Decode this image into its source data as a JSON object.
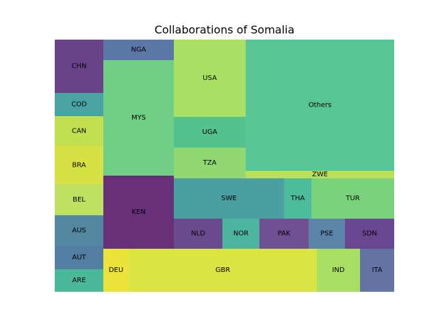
{
  "chart_data": {
    "type": "treemap",
    "title": "Collaborations of Somalia",
    "cells": [
      {
        "label": "CHN",
        "color": "#6a4288"
      },
      {
        "label": "COD",
        "color": "#4aa3a3"
      },
      {
        "label": "CAN",
        "color": "#c2df4e"
      },
      {
        "label": "BRA",
        "color": "#d6e244"
      },
      {
        "label": "BEL",
        "color": "#bde15e"
      },
      {
        "label": "AUS",
        "color": "#52879f"
      },
      {
        "label": "AUT",
        "color": "#527ea3"
      },
      {
        "label": "ARE",
        "color": "#4bb899"
      },
      {
        "label": "NGA",
        "color": "#5b77a6"
      },
      {
        "label": "MYS",
        "color": "#6fd085"
      },
      {
        "label": "KEN",
        "color": "#69307a"
      },
      {
        "label": "USA",
        "color": "#a9df62"
      },
      {
        "label": "UGA",
        "color": "#55c18c"
      },
      {
        "label": "TZA",
        "color": "#92d870"
      },
      {
        "label": "Others",
        "color": "#57c594"
      },
      {
        "label": "ZWE",
        "color": "#b9e057"
      },
      {
        "label": "SWE",
        "color": "#4aa0a0"
      },
      {
        "label": "THA",
        "color": "#4bbd9a"
      },
      {
        "label": "TUR",
        "color": "#79d27c"
      },
      {
        "label": "NLD",
        "color": "#6a4a8c"
      },
      {
        "label": "NOR",
        "color": "#4bb5a0"
      },
      {
        "label": "PAK",
        "color": "#704f93"
      },
      {
        "label": "PSE",
        "color": "#5a84a8"
      },
      {
        "label": "SDN",
        "color": "#6b4690"
      },
      {
        "label": "DEU",
        "color": "#ebe23a"
      },
      {
        "label": "GBR",
        "color": "#dae545"
      },
      {
        "label": "IND",
        "color": "#a8de61"
      },
      {
        "label": "ITA",
        "color": "#6273a4"
      }
    ]
  }
}
